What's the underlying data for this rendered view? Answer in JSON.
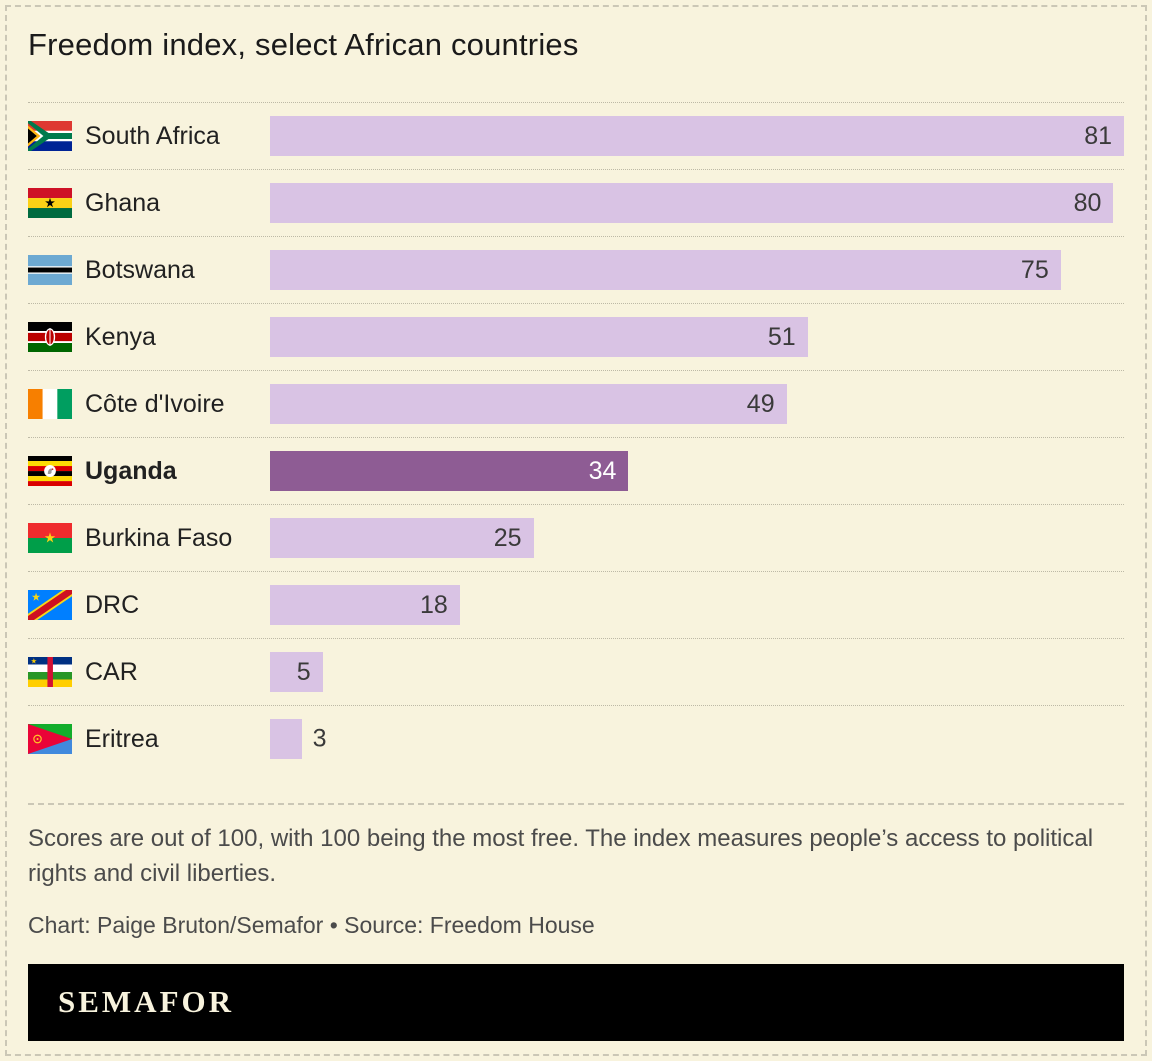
{
  "chart_data": {
    "type": "bar",
    "orientation": "horizontal",
    "title": "Freedom index, select African countries",
    "categories": [
      "South Africa",
      "Ghana",
      "Botswana",
      "Kenya",
      "Côte d'Ivoire",
      "Uganda",
      "Burkina Faso",
      "DRC",
      "CAR",
      "Eritrea"
    ],
    "values": [
      81,
      80,
      75,
      51,
      49,
      34,
      25,
      18,
      5,
      3
    ],
    "highlighted_category": "Uganda",
    "xlim": [
      0,
      81
    ],
    "grid": "off",
    "legend": "none",
    "value_labels": "end-of-bar",
    "flag_icons": [
      "south-africa-flag-icon",
      "ghana-flag-icon",
      "botswana-flag-icon",
      "kenya-flag-icon",
      "cote-divoire-flag-icon",
      "uganda-flag-icon",
      "burkina-faso-flag-icon",
      "drc-flag-icon",
      "car-flag-icon",
      "eritrea-flag-icon"
    ]
  },
  "notes": {
    "description": "Scores are out of 100, with 100 being the most free. The index measures people’s access to political rights and civil liberties.",
    "credit": "Chart: Paige Bruton/Semafor  •  Source: Freedom House"
  },
  "footer": {
    "logo_text": "SEMAFOR"
  },
  "colors": {
    "background": "#f8f3dd",
    "bar": "#d9c3e4",
    "highlight": "#8e5c94",
    "logo_bg": "#000000"
  }
}
